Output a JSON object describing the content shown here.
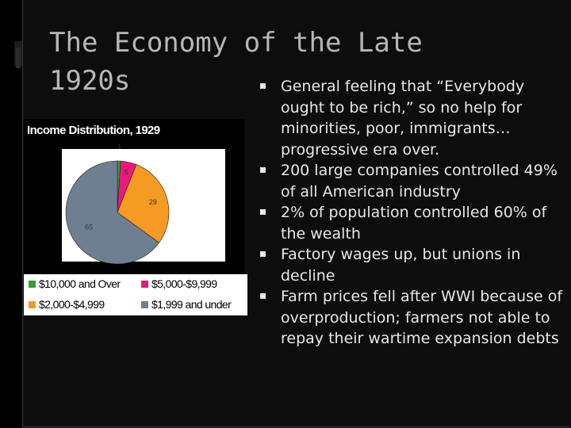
{
  "slide": {
    "title": "The Economy of the Late 1920s",
    "bullets": [
      "General feeling that “Everybody ought to be rich,” so no help for minorities, poor, immigrants…progressive era over.",
      "200 large companies controlled 49% of all American industry",
      "2% of population controlled 60% of the wealth",
      "Factory wages up, but unions in decline",
      "Farm prices fell after WWI because of overproduction; farmers not able to repay their wartime expansion debts"
    ]
  },
  "chart_data": {
    "type": "pie",
    "title": "Income Distribution, 1929",
    "slices": [
      {
        "label": "$10,000 and Over",
        "value": 1,
        "color": "#33a02c"
      },
      {
        "label": "$5,000-$9,999",
        "value": 5,
        "color": "#e8197d"
      },
      {
        "label": "$2,000-$4,999",
        "value": 29,
        "color": "#f59a22"
      },
      {
        "label": "$1,999 and under",
        "value": 65,
        "color": "#6e7f92"
      }
    ],
    "legend_position": "bottom"
  }
}
